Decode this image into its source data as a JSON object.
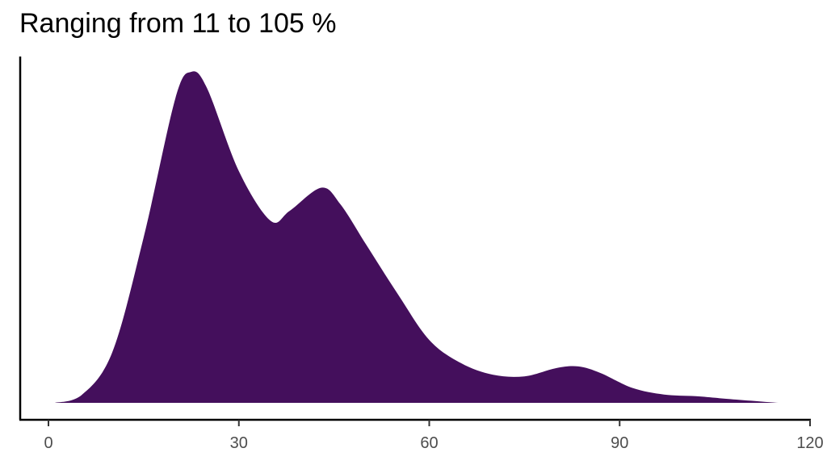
{
  "chart_data": {
    "type": "area",
    "subtype": "density",
    "title": "Ranging from 11 to 105 %",
    "xlabel": "",
    "ylabel": "",
    "xlim": [
      0,
      120
    ],
    "x_ticks": [
      "0",
      "30",
      "60",
      "90",
      "120"
    ],
    "y_ticks": [],
    "grid": false,
    "legend": null,
    "fill_color": "#440f5c",
    "x": [
      1,
      5,
      10,
      15,
      20,
      22.5,
      25,
      30,
      35,
      38,
      43,
      46,
      50,
      55,
      60,
      65,
      70,
      75,
      80,
      83.5,
      87,
      92,
      97,
      102,
      107,
      115
    ],
    "density_relative": [
      0.0,
      0.02,
      0.15,
      0.5,
      0.92,
      1.0,
      0.95,
      0.7,
      0.55,
      0.58,
      0.65,
      0.6,
      0.48,
      0.33,
      0.19,
      0.12,
      0.085,
      0.08,
      0.105,
      0.11,
      0.09,
      0.045,
      0.025,
      0.02,
      0.012,
      0.0
    ]
  }
}
